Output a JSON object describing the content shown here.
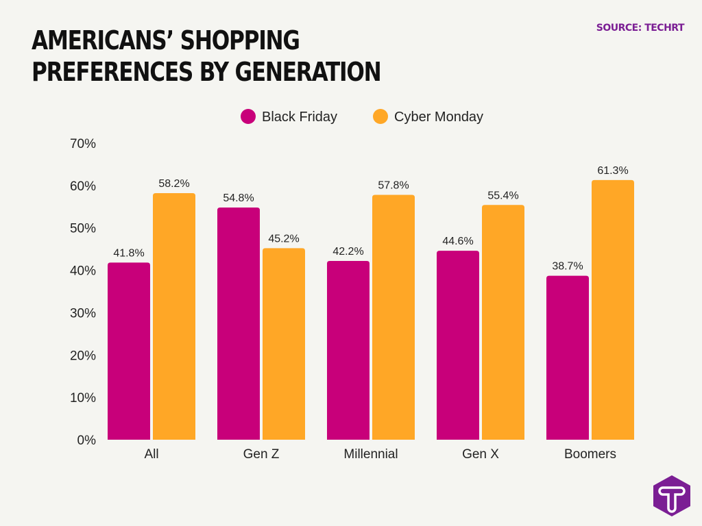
{
  "title": "Americans’ Shopping Preferences by Generation",
  "source": "SOURCE: TECHRT",
  "logo": {
    "letter": "T",
    "color": "#7b1e94"
  },
  "chart_data": {
    "type": "bar",
    "title": "Americans’ Shopping Preferences by Generation",
    "categories": [
      "All",
      "Gen Z",
      "Millennial",
      "Gen X",
      "Boomers"
    ],
    "series": [
      {
        "name": "Black Friday",
        "color": "#c8007a",
        "values": [
          41.8,
          54.8,
          42.2,
          44.6,
          38.7
        ]
      },
      {
        "name": "Cyber Monday",
        "color": "#ffa726",
        "values": [
          58.2,
          45.2,
          57.8,
          55.4,
          61.3
        ]
      }
    ],
    "data_labels": [
      [
        "41.8%",
        "54.8%",
        "42.2%",
        "44.6%",
        "38.7%"
      ],
      [
        "58.2%",
        "45.2%",
        "57.8%",
        "55.4%",
        "61.3%"
      ]
    ],
    "yticks": [
      "0%",
      "10%",
      "20%",
      "30%",
      "40%",
      "50%",
      "60%",
      "70%"
    ],
    "ylim": [
      0,
      70
    ],
    "xlabel": "",
    "ylabel": "",
    "grid": false,
    "legend": "top-center"
  }
}
